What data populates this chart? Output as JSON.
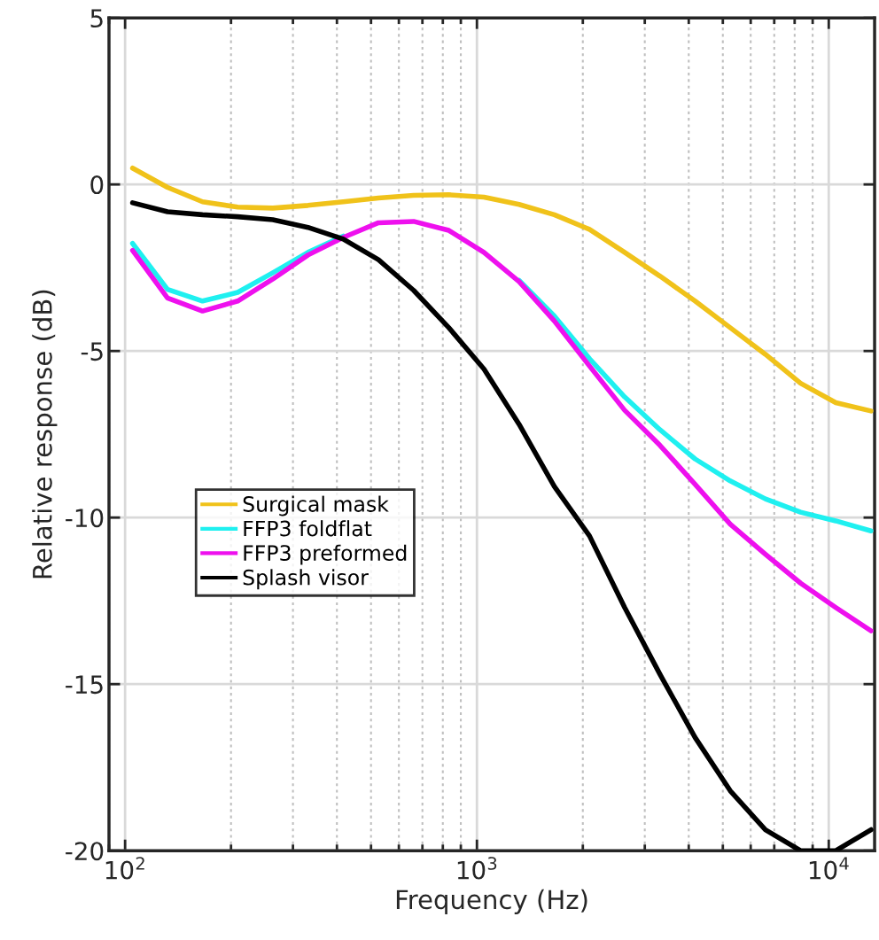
{
  "chart_data": {
    "type": "line",
    "xlabel": "Frequency (Hz)",
    "ylabel": "Relative response (dB)",
    "x": [
      105,
      132,
      166,
      209,
      263,
      331,
      417,
      525,
      661,
      832,
      1047,
      1318,
      1660,
      2089,
      2630,
      3311,
      4169,
      5248,
      6607,
      8318,
      10471,
      13183
    ],
    "series": [
      {
        "name": "Surgical mask",
        "color": "#f0c21a",
        "values": [
          0.49,
          -0.09,
          -0.52,
          -0.68,
          -0.71,
          -0.63,
          -0.52,
          -0.41,
          -0.33,
          -0.31,
          -0.38,
          -0.6,
          -0.91,
          -1.35,
          -2.04,
          -2.75,
          -3.5,
          -4.3,
          -5.1,
          -5.97,
          -6.55,
          -6.8
        ]
      },
      {
        "name": "FFP3 foldflat",
        "color": "#1ff0f0",
        "values": [
          -1.77,
          -3.15,
          -3.5,
          -3.24,
          -2.65,
          -2.04,
          -1.55,
          null,
          null,
          null,
          null,
          -2.88,
          -3.95,
          -5.23,
          -6.38,
          -7.36,
          -8.24,
          -8.9,
          -9.44,
          -9.84,
          -10.1,
          -10.4
        ]
      },
      {
        "name": "FFP3 preformed",
        "color": "#ee10ee",
        "values": [
          -1.98,
          -3.41,
          -3.8,
          -3.5,
          -2.84,
          -2.12,
          -1.59,
          -1.15,
          -1.11,
          -1.38,
          -2.04,
          -2.92,
          -4.1,
          -5.45,
          -6.78,
          -7.83,
          -9.0,
          -10.2,
          -11.1,
          -11.97,
          -12.7,
          -13.4
        ]
      },
      {
        "name": "Splash visor",
        "color": "#000000",
        "values": [
          -0.55,
          -0.82,
          -0.91,
          -0.97,
          -1.06,
          -1.29,
          -1.64,
          -2.26,
          -3.18,
          -4.3,
          -5.54,
          -7.2,
          -9.07,
          -10.55,
          -12.7,
          -14.7,
          -16.6,
          -18.2,
          -19.37,
          -20.0,
          -20.0,
          -19.37
        ]
      }
    ],
    "log": "x",
    "xlim": [
      90,
      13500
    ],
    "xticks": [
      {
        "value": 100,
        "label": "10$^{2}$"
      },
      {
        "value": 1000,
        "label": "10$^{3}$"
      },
      {
        "value": 10000,
        "label": "10$^{4}$"
      }
    ],
    "ylim": [
      -20,
      5
    ],
    "yticks": [
      -20,
      -15,
      -10,
      -5,
      0,
      5
    ],
    "grid": true,
    "legend": "center left",
    "marker": "none",
    "line_style": "solid"
  }
}
